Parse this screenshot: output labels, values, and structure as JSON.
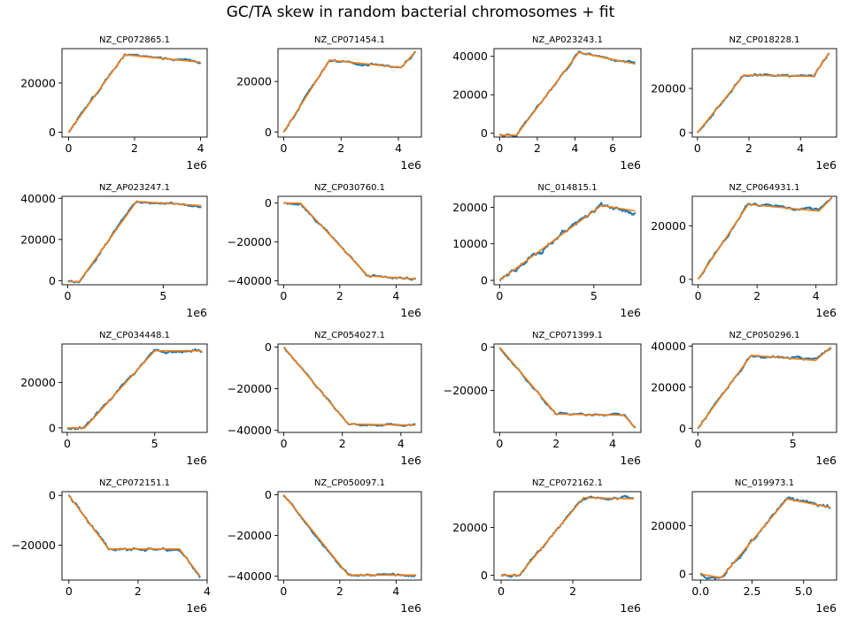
{
  "figure": {
    "title": "GC/TA skew in random bacterial chromosomes + fit",
    "x_scale_label": "1e6"
  },
  "colors": {
    "data": "#1f77b4",
    "fit": "#ff7f0e",
    "axes": "#000000"
  },
  "chart_data": [
    {
      "type": "line",
      "title": "NZ_CP072865.1",
      "xlim": [
        -0.2,
        4.2
      ],
      "ylim": [
        -2000,
        34000
      ],
      "xticks": [
        0,
        2,
        4
      ],
      "xtick_labels": [
        "0",
        "2",
        "4"
      ],
      "yticks": [
        0,
        20000
      ],
      "ytick_labels": [
        "0",
        "20000"
      ],
      "fit_x": [
        0,
        1.7,
        4.0
      ],
      "fit_y": [
        0,
        31500,
        28500
      ],
      "noise": 500
    },
    {
      "type": "line",
      "title": "NZ_CP071454.1",
      "xlim": [
        -0.2,
        4.8
      ],
      "ylim": [
        -2000,
        33000
      ],
      "xticks": [
        0,
        2,
        4
      ],
      "xtick_labels": [
        "0",
        "2",
        "4"
      ],
      "yticks": [
        0,
        20000
      ],
      "ytick_labels": [
        "0",
        "20000"
      ],
      "fit_x": [
        0,
        1.6,
        4.1,
        4.6
      ],
      "fit_y": [
        0,
        28500,
        25500,
        32000
      ],
      "noise": 500
    },
    {
      "type": "line",
      "title": "NZ_AP023243.1",
      "xlim": [
        -0.3,
        7.5
      ],
      "ylim": [
        -2000,
        44000
      ],
      "xticks": [
        0,
        2,
        4,
        6
      ],
      "xtick_labels": [
        "0",
        "2",
        "4",
        "6"
      ],
      "yticks": [
        0,
        20000,
        40000
      ],
      "ytick_labels": [
        "0",
        "20000",
        "40000"
      ],
      "fit_x": [
        0,
        0.9,
        4.2,
        7.2
      ],
      "fit_y": [
        -1000,
        -1000,
        42000,
        36000
      ],
      "noise": 600
    },
    {
      "type": "line",
      "title": "NZ_CP018228.1",
      "xlim": [
        -0.2,
        5.4
      ],
      "ylim": [
        -2000,
        38000
      ],
      "xticks": [
        0,
        2,
        4
      ],
      "xtick_labels": [
        "0",
        "2",
        "4"
      ],
      "yticks": [
        0,
        20000
      ],
      "ytick_labels": [
        "0",
        "20000"
      ],
      "fit_x": [
        0,
        1.8,
        4.5,
        5.1
      ],
      "fit_y": [
        0,
        26000,
        25500,
        36000
      ],
      "noise": 600
    },
    {
      "type": "line",
      "title": "NZ_AP023247.1",
      "xlim": [
        -0.3,
        7.3
      ],
      "ylim": [
        -2000,
        41000
      ],
      "xticks": [
        0,
        5
      ],
      "xtick_labels": [
        "0",
        "5"
      ],
      "yticks": [
        0,
        20000,
        40000
      ],
      "ytick_labels": [
        "0",
        "20000",
        "40000"
      ],
      "fit_x": [
        0,
        0.6,
        3.6,
        7.0
      ],
      "fit_y": [
        -500,
        -500,
        38500,
        36500
      ],
      "noise": 600
    },
    {
      "type": "line",
      "title": "NZ_CP030760.1",
      "xlim": [
        -0.2,
        4.9
      ],
      "ylim": [
        -42000,
        3500
      ],
      "xticks": [
        0,
        2,
        4
      ],
      "xtick_labels": [
        "0",
        "2",
        "4"
      ],
      "yticks": [
        0,
        -20000,
        -40000
      ],
      "ytick_labels": [
        "0",
        "−20000",
        "−40000"
      ],
      "fit_x": [
        0,
        0.6,
        3.0,
        4.7
      ],
      "fit_y": [
        0,
        0,
        -37500,
        -39000
      ],
      "noise": 600
    },
    {
      "type": "line",
      "title": "NC_014815.1",
      "xlim": [
        -0.3,
        7.5
      ],
      "ylim": [
        -1200,
        23000
      ],
      "xticks": [
        0,
        5
      ],
      "xtick_labels": [
        "0",
        "5"
      ],
      "yticks": [
        0,
        10000,
        20000
      ],
      "ytick_labels": [
        "0",
        "10000",
        "20000"
      ],
      "fit_x": [
        0,
        5.4,
        7.2
      ],
      "fit_y": [
        0,
        20500,
        19000
      ],
      "noise": 700
    },
    {
      "type": "line",
      "title": "NZ_CP064931.1",
      "xlim": [
        -0.2,
        4.7
      ],
      "ylim": [
        -2000,
        31000
      ],
      "xticks": [
        0,
        2,
        4
      ],
      "xtick_labels": [
        "0",
        "2",
        "4"
      ],
      "yticks": [
        0,
        20000
      ],
      "ytick_labels": [
        "0",
        "20000"
      ],
      "fit_x": [
        0,
        1.7,
        4.1,
        4.55
      ],
      "fit_y": [
        0,
        28000,
        25500,
        30500
      ],
      "noise": 600
    },
    {
      "type": "line",
      "title": "NZ_CP034448.1",
      "xlim": [
        -0.3,
        8.0
      ],
      "ylim": [
        -2000,
        37000
      ],
      "xticks": [
        0,
        5
      ],
      "xtick_labels": [
        "0",
        "5"
      ],
      "yticks": [
        0,
        20000
      ],
      "ytick_labels": [
        "0",
        "20000"
      ],
      "fit_x": [
        0,
        1.0,
        5.0,
        7.7
      ],
      "fit_y": [
        0,
        0,
        34000,
        34000
      ],
      "noise": 700
    },
    {
      "type": "line",
      "title": "NZ_CP054027.1",
      "xlim": [
        -0.2,
        4.7
      ],
      "ylim": [
        -41000,
        1500
      ],
      "xticks": [
        0,
        2,
        4
      ],
      "xtick_labels": [
        "0",
        "2",
        "4"
      ],
      "yticks": [
        0,
        -20000,
        -40000
      ],
      "ytick_labels": [
        "0",
        "−20000",
        "−40000"
      ],
      "fit_x": [
        0,
        2.2,
        4.5
      ],
      "fit_y": [
        0,
        -37000,
        -37500
      ],
      "noise": 500
    },
    {
      "type": "line",
      "title": "NZ_CP071399.1",
      "xlim": [
        -0.2,
        5.0
      ],
      "ylim": [
        -39500,
        1500
      ],
      "xticks": [
        0,
        2,
        4
      ],
      "xtick_labels": [
        "0",
        "2",
        "4"
      ],
      "yticks": [
        0,
        -20000
      ],
      "ytick_labels": [
        "0",
        "−20000"
      ],
      "fit_x": [
        0,
        2.0,
        4.4,
        4.8
      ],
      "fit_y": [
        0,
        -31000,
        -31500,
        -37500
      ],
      "noise": 500
    },
    {
      "type": "line",
      "title": "NZ_CP050296.1",
      "xlim": [
        -0.3,
        7.3
      ],
      "ylim": [
        -2000,
        41000
      ],
      "xticks": [
        0,
        5
      ],
      "xtick_labels": [
        "0",
        "5"
      ],
      "yticks": [
        0,
        20000,
        40000
      ],
      "ytick_labels": [
        "0",
        "20000",
        "40000"
      ],
      "fit_x": [
        0,
        2.8,
        6.2,
        7.0
      ],
      "fit_y": [
        0,
        35500,
        33000,
        39500
      ],
      "noise": 700
    },
    {
      "type": "line",
      "title": "NZ_CP072151.1",
      "xlim": [
        -0.2,
        4.0
      ],
      "ylim": [
        -34000,
        1500
      ],
      "xticks": [
        0,
        2,
        4
      ],
      "xtick_labels": [
        "0",
        "2",
        "4"
      ],
      "yticks": [
        0,
        -20000
      ],
      "ytick_labels": [
        "0",
        "−20000"
      ],
      "fit_x": [
        0,
        1.15,
        3.2,
        3.8
      ],
      "fit_y": [
        0,
        -21500,
        -21500,
        -32500
      ],
      "noise": 600
    },
    {
      "type": "line",
      "title": "NZ_CP050097.1",
      "xlim": [
        -0.2,
        4.9
      ],
      "ylim": [
        -42000,
        1500
      ],
      "xticks": [
        0,
        2,
        4
      ],
      "xtick_labels": [
        "0",
        "2",
        "4"
      ],
      "yticks": [
        0,
        -20000,
        -40000
      ],
      "ytick_labels": [
        "0",
        "−20000",
        "−40000"
      ],
      "fit_x": [
        0,
        2.3,
        4.7
      ],
      "fit_y": [
        0,
        -39500,
        -39500
      ],
      "noise": 600
    },
    {
      "type": "line",
      "title": "NZ_CP072162.1",
      "xlim": [
        -0.2,
        3.9
      ],
      "ylim": [
        -2000,
        35000
      ],
      "xticks": [
        0,
        2
      ],
      "xtick_labels": [
        "0",
        "2"
      ],
      "yticks": [
        0,
        20000
      ],
      "ytick_labels": [
        "0",
        "20000"
      ],
      "fit_x": [
        0,
        0.5,
        2.3,
        3.7
      ],
      "fit_y": [
        0,
        0,
        32500,
        32000
      ],
      "noise": 600
    },
    {
      "type": "line",
      "title": "NC_019973.1",
      "xlim": [
        -0.4,
        6.6
      ],
      "ylim": [
        -2500,
        34000
      ],
      "xticks": [
        0,
        2.5,
        5
      ],
      "xtick_labels": [
        "0.0",
        "2.5",
        "5.0"
      ],
      "yticks": [
        0,
        20000
      ],
      "ytick_labels": [
        "0",
        "20000"
      ],
      "fit_x": [
        0,
        1.0,
        4.2,
        6.3
      ],
      "fit_y": [
        0,
        -1500,
        31000,
        27500
      ],
      "noise": 800
    }
  ]
}
